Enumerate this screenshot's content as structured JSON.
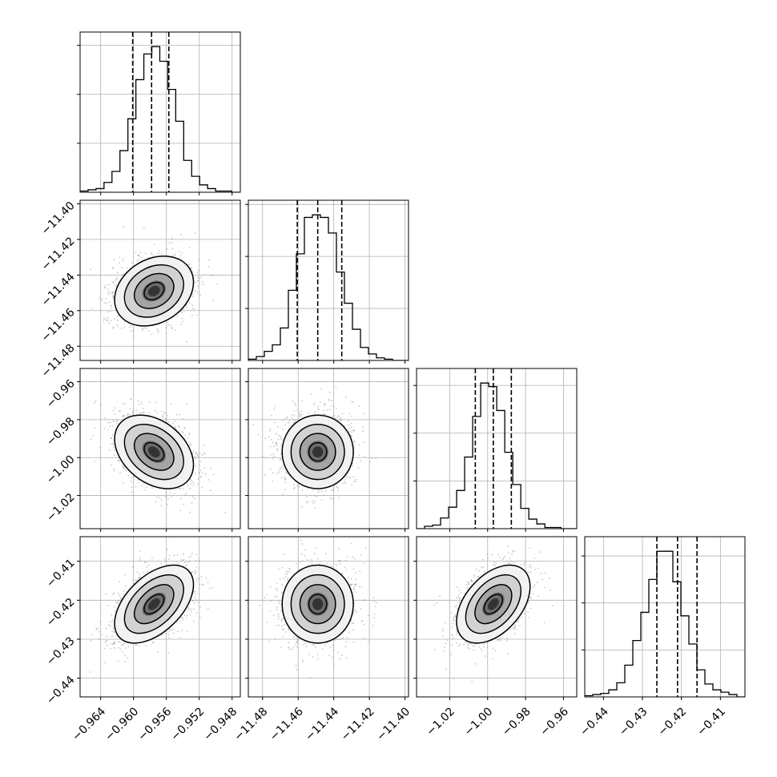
{
  "chart_data": {
    "type": "corner",
    "parameters": [
      {
        "range": [
          -0.9665,
          -0.947
        ],
        "ticks": [
          -0.964,
          -0.96,
          -0.956,
          -0.952,
          -0.948
        ],
        "tick_labels": [
          "−0.964",
          "−0.960",
          "−0.956",
          "−0.952",
          "−0.948"
        ],
        "quantiles": [
          -0.9601,
          -0.9578,
          -0.9557
        ],
        "histogram": {
          "edges_start": -0.9665,
          "bin_width": 0.00097,
          "counts": [
            1,
            2,
            3,
            8,
            17,
            34,
            60,
            92,
            113,
            119,
            107,
            84,
            58,
            26,
            13,
            6,
            3,
            1,
            1,
            0
          ]
        }
      },
      {
        "range": [
          -11.488,
          -11.398
        ],
        "ticks": [
          -11.48,
          -11.46,
          -11.44,
          -11.42,
          -11.4
        ],
        "tick_labels": [
          "−11.48",
          "−11.46",
          "−11.44",
          "−11.42",
          "−11.40"
        ],
        "quantiles": [
          -11.4605,
          -11.449,
          -11.4355
        ],
        "histogram": {
          "edges_start": -11.488,
          "bin_width": 0.0045,
          "counts": [
            1,
            3,
            7,
            12,
            25,
            54,
            82,
            110,
            112,
            110,
            98,
            68,
            44,
            24,
            10,
            5,
            2,
            1,
            0,
            0
          ]
        }
      },
      {
        "range": [
          -1.0375,
          -0.953
        ],
        "ticks": [
          -1.02,
          -1.0,
          -0.98,
          -0.96
        ],
        "tick_labels": [
          "−1.02",
          "−1.00",
          "−0.98",
          "−0.96"
        ],
        "quantiles": [
          -1.0065,
          -0.997,
          -0.9875
        ],
        "histogram": {
          "edges_start": -1.0375,
          "bin_width": 0.00423,
          "counts": [
            0,
            2,
            3,
            9,
            18,
            32,
            60,
            94,
            122,
            119,
            99,
            64,
            37,
            17,
            8,
            4,
            1,
            1,
            0,
            0
          ]
        }
      },
      {
        "range": [
          -0.4448,
          -0.4037
        ],
        "ticks": [
          -0.44,
          -0.43,
          -0.42,
          -0.41
        ],
        "tick_labels": [
          "−0.44",
          "−0.43",
          "−0.42",
          "−0.41"
        ],
        "quantiles": [
          -0.4263,
          -0.421,
          -0.416
        ],
        "histogram": {
          "edges_start": -0.4448,
          "bin_width": 0.002055,
          "counts": [
            1,
            2,
            3,
            6,
            12,
            27,
            48,
            72,
            100,
            124,
            124,
            98,
            69,
            45,
            23,
            11,
            6,
            4,
            2,
            0
          ]
        }
      }
    ],
    "pairs": [
      {
        "x_param": 0,
        "y_param": 1,
        "center": [
          -0.9575,
          -11.449
        ],
        "spread": [
          0.0024,
          0.0098
        ],
        "correlation": 0.25
      },
      {
        "x_param": 0,
        "y_param": 2,
        "center": [
          -0.9575,
          -0.997
        ],
        "spread": [
          0.0024,
          0.0097
        ],
        "correlation": -0.35
      },
      {
        "x_param": 1,
        "y_param": 2,
        "center": [
          -11.449,
          -0.997
        ],
        "spread": [
          0.01,
          0.0097
        ],
        "correlation": 0.0
      },
      {
        "x_param": 0,
        "y_param": 3,
        "center": [
          -0.9575,
          -0.421
        ],
        "spread": [
          0.0024,
          0.005
        ],
        "correlation": 0.5
      },
      {
        "x_param": 1,
        "y_param": 3,
        "center": [
          -11.449,
          -0.421
        ],
        "spread": [
          0.01,
          0.005
        ],
        "correlation": 0.0
      },
      {
        "x_param": 2,
        "y_param": 3,
        "center": [
          -0.997,
          -0.421
        ],
        "spread": [
          0.0097,
          0.005
        ],
        "correlation": 0.45
      }
    ],
    "contour_levels_sigma": [
      0.5,
      1.0,
      1.5,
      2.0
    ],
    "grid": true,
    "colors": {
      "line": "#000000",
      "grid": "#b0b0b0",
      "points": "#9a9a9a",
      "density": "#000000"
    }
  }
}
